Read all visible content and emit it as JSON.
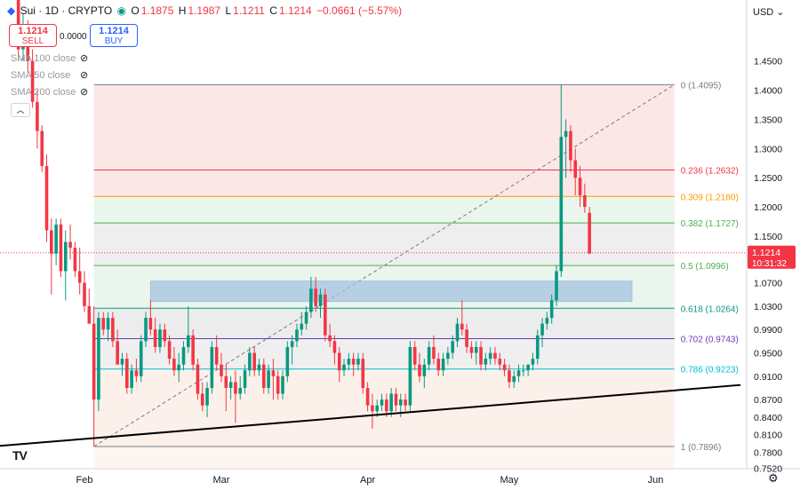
{
  "header": {
    "symbol": "Sui · 1D · CRYPTO",
    "open_label": "O",
    "open": "1.1875",
    "high_label": "H",
    "high": "1.1987",
    "low_label": "L",
    "low": "1.1211",
    "close_label": "C",
    "close": "1.1214",
    "change": "−0.0661 (−5.57%)"
  },
  "trade": {
    "sell_price": "1.1214",
    "sell_label": "SELL",
    "buy_price": "1.1214",
    "buy_label": "BUY",
    "spread": "0.0000"
  },
  "indicators": [
    "SMA 100 close",
    "SMA 50 close",
    "SMA 200 close"
  ],
  "currency_button": "USD",
  "last_price_label": "1.1214",
  "countdown_label": "10:31:32",
  "colors": {
    "up": "#089981",
    "down": "#f23645",
    "zone": "#a6c3e2",
    "trendline": "#000000"
  },
  "chart_data": {
    "type": "candlestick",
    "y_ticks": [
      1.45,
      1.4,
      1.35,
      1.3,
      1.25,
      1.2,
      1.15,
      1.07,
      1.03,
      0.99,
      0.95,
      0.91,
      0.87,
      0.84,
      0.81,
      0.78,
      0.752
    ],
    "y_tick_labels": [
      "1.4500",
      "1.4000",
      "1.3500",
      "1.3000",
      "1.2500",
      "1.2000",
      "1.1500",
      "1.0700",
      "1.0300",
      "0.9900",
      "0.9500",
      "0.9100",
      "0.8700",
      "0.8400",
      "0.8100",
      "0.7800",
      "0.7520"
    ],
    "x_labels": [
      {
        "label": "Feb",
        "day": 31
      },
      {
        "label": "Mar",
        "day": 60
      },
      {
        "label": "Apr",
        "day": 91
      },
      {
        "label": "May",
        "day": 121
      },
      {
        "label": "Jun",
        "day": 152
      }
    ],
    "fibonacci": {
      "high": 1.4095,
      "low": 0.7896,
      "start_day": 33,
      "end_day": 156,
      "levels": [
        {
          "label": "0 (1.4095)",
          "value": 1.4095,
          "color": "#787b86",
          "fill": "#fbe3e3"
        },
        {
          "label": "0.236 (1.2632)",
          "value": 1.2632,
          "color": "#f23645",
          "fill": "#fbe3e3"
        },
        {
          "label": "0.309 (1.2180)",
          "value": 1.218,
          "color": "#ff9800",
          "fill": "#e6f4ea"
        },
        {
          "label": "0.382 (1.1727)",
          "value": 1.1727,
          "color": "#4caf50",
          "fill": "#ebebeb"
        },
        {
          "label": "0.5 (1.0996)",
          "value": 1.0996,
          "color": "#4caf50",
          "fill": "#e6f4ea"
        },
        {
          "label": "0.618 (1.0264)",
          "value": 1.0264,
          "color": "#089981",
          "fill": "#e9e9e9"
        },
        {
          "label": "0.702 (0.9743)",
          "value": 0.9743,
          "color": "#673ab7",
          "fill": "#ececec"
        },
        {
          "label": "0.786 (0.9223)",
          "value": 0.9223,
          "color": "#00bcd4",
          "fill": "#fbeee6"
        },
        {
          "label": "1 (0.7896)",
          "value": 0.7896,
          "color": "#787b86",
          "fill": null
        }
      ]
    },
    "zone": {
      "day_start": 45,
      "day_end": 147,
      "top": 1.073,
      "bottom": 1.038
    },
    "trendline": {
      "day1": 0,
      "price1": 0.782,
      "day2": 170,
      "price2": 0.895
    },
    "last_price": 1.1214,
    "candles": [
      [
        17,
        1.6,
        1.62,
        1.45,
        1.47
      ],
      [
        18,
        1.47,
        1.53,
        1.45,
        1.5
      ],
      [
        19,
        1.5,
        1.52,
        1.43,
        1.45
      ],
      [
        20,
        1.45,
        1.47,
        1.37,
        1.38
      ],
      [
        21,
        1.38,
        1.4,
        1.3,
        1.33
      ],
      [
        22,
        1.33,
        1.34,
        1.26,
        1.27
      ],
      [
        23,
        1.27,
        1.29,
        1.14,
        1.16
      ],
      [
        24,
        1.16,
        1.18,
        1.05,
        1.12
      ],
      [
        25,
        1.12,
        1.18,
        1.1,
        1.17
      ],
      [
        26,
        1.17,
        1.18,
        1.08,
        1.09
      ],
      [
        27,
        1.09,
        1.16,
        1.04,
        1.14
      ],
      [
        28,
        1.14,
        1.17,
        1.11,
        1.13
      ],
      [
        29,
        1.13,
        1.14,
        1.08,
        1.09
      ],
      [
        30,
        1.09,
        1.13,
        1.05,
        1.07
      ],
      [
        31,
        1.07,
        1.09,
        1.02,
        1.03
      ],
      [
        32,
        1.03,
        1.06,
        1.0,
        1.0
      ],
      [
        33,
        1.0,
        1.03,
        0.79,
        0.87
      ],
      [
        34,
        0.87,
        1.02,
        0.85,
        1.01
      ],
      [
        35,
        1.01,
        1.02,
        0.98,
        0.99
      ],
      [
        36,
        0.99,
        1.02,
        0.97,
        1.01
      ],
      [
        37,
        1.01,
        1.02,
        0.96,
        0.97
      ],
      [
        38,
        0.97,
        0.99,
        0.93,
        0.93
      ],
      [
        39,
        0.93,
        0.95,
        0.91,
        0.94
      ],
      [
        40,
        0.94,
        0.95,
        0.88,
        0.89
      ],
      [
        41,
        0.89,
        0.93,
        0.88,
        0.92
      ],
      [
        42,
        0.92,
        0.94,
        0.9,
        0.91
      ],
      [
        43,
        0.91,
        0.98,
        0.9,
        0.97
      ],
      [
        44,
        0.97,
        1.02,
        0.96,
        1.01
      ],
      [
        45,
        1.01,
        1.04,
        0.98,
        0.99
      ],
      [
        46,
        0.99,
        1.01,
        0.95,
        0.96
      ],
      [
        47,
        0.96,
        1.0,
        0.95,
        0.99
      ],
      [
        48,
        0.99,
        1.0,
        0.96,
        0.97
      ],
      [
        49,
        0.97,
        0.98,
        0.93,
        0.94
      ],
      [
        50,
        0.94,
        0.96,
        0.91,
        0.92
      ],
      [
        51,
        0.92,
        0.95,
        0.9,
        0.93
      ],
      [
        52,
        0.93,
        0.97,
        0.92,
        0.96
      ],
      [
        53,
        0.96,
        1.03,
        0.95,
        0.98
      ],
      [
        54,
        0.98,
        0.99,
        0.92,
        0.93
      ],
      [
        55,
        0.93,
        0.94,
        0.87,
        0.88
      ],
      [
        56,
        0.88,
        0.9,
        0.85,
        0.86
      ],
      [
        57,
        0.86,
        0.9,
        0.84,
        0.89
      ],
      [
        58,
        0.89,
        0.97,
        0.88,
        0.96
      ],
      [
        59,
        0.96,
        0.98,
        0.92,
        0.93
      ],
      [
        60,
        0.93,
        0.95,
        0.9,
        0.91
      ],
      [
        61,
        0.91,
        0.93,
        0.85,
        0.89
      ],
      [
        62,
        0.89,
        0.91,
        0.87,
        0.9
      ],
      [
        63,
        0.9,
        0.92,
        0.83,
        0.88
      ],
      [
        64,
        0.88,
        0.91,
        0.87,
        0.89
      ],
      [
        65,
        0.89,
        0.93,
        0.88,
        0.92
      ],
      [
        66,
        0.92,
        0.96,
        0.91,
        0.95
      ],
      [
        67,
        0.95,
        0.96,
        0.91,
        0.92
      ],
      [
        68,
        0.92,
        0.94,
        0.91,
        0.93
      ],
      [
        69,
        0.93,
        0.94,
        0.88,
        0.89
      ],
      [
        70,
        0.89,
        0.93,
        0.88,
        0.92
      ],
      [
        71,
        0.92,
        0.94,
        0.87,
        0.91
      ],
      [
        72,
        0.91,
        0.92,
        0.87,
        0.88
      ],
      [
        73,
        0.88,
        0.92,
        0.87,
        0.91
      ],
      [
        74,
        0.91,
        0.97,
        0.9,
        0.96
      ],
      [
        75,
        0.96,
        0.98,
        0.93,
        0.97
      ],
      [
        76,
        0.97,
        1.0,
        0.96,
        0.99
      ],
      [
        77,
        0.99,
        1.02,
        0.98,
        1.0
      ],
      [
        78,
        1.0,
        1.03,
        0.99,
        1.02
      ],
      [
        79,
        1.02,
        1.08,
        1.01,
        1.06
      ],
      [
        80,
        1.06,
        1.08,
        1.02,
        1.03
      ],
      [
        81,
        1.03,
        1.06,
        1.01,
        1.05
      ],
      [
        82,
        1.05,
        1.06,
        0.97,
        0.98
      ],
      [
        83,
        0.98,
        1.0,
        0.96,
        0.97
      ],
      [
        84,
        0.97,
        0.98,
        0.93,
        0.95
      ],
      [
        85,
        0.95,
        0.96,
        0.9,
        0.92
      ],
      [
        86,
        0.92,
        0.94,
        0.91,
        0.93
      ],
      [
        87,
        0.93,
        0.95,
        0.92,
        0.94
      ],
      [
        88,
        0.94,
        0.95,
        0.91,
        0.93
      ],
      [
        89,
        0.93,
        0.95,
        0.92,
        0.94
      ],
      [
        90,
        0.94,
        0.95,
        0.88,
        0.89
      ],
      [
        91,
        0.89,
        0.9,
        0.85,
        0.86
      ],
      [
        92,
        0.86,
        0.88,
        0.82,
        0.85
      ],
      [
        93,
        0.85,
        0.87,
        0.84,
        0.86
      ],
      [
        94,
        0.86,
        0.88,
        0.85,
        0.87
      ],
      [
        95,
        0.87,
        0.88,
        0.84,
        0.85
      ],
      [
        96,
        0.85,
        0.89,
        0.84,
        0.88
      ],
      [
        97,
        0.88,
        0.89,
        0.85,
        0.86
      ],
      [
        98,
        0.86,
        0.88,
        0.84,
        0.87
      ],
      [
        99,
        0.87,
        0.88,
        0.85,
        0.86
      ],
      [
        100,
        0.86,
        0.97,
        0.85,
        0.96
      ],
      [
        101,
        0.96,
        0.97,
        0.92,
        0.93
      ],
      [
        102,
        0.93,
        0.95,
        0.9,
        0.91
      ],
      [
        103,
        0.91,
        0.94,
        0.89,
        0.93
      ],
      [
        104,
        0.93,
        0.97,
        0.92,
        0.96
      ],
      [
        105,
        0.96,
        0.98,
        0.93,
        0.94
      ],
      [
        106,
        0.94,
        0.95,
        0.91,
        0.92
      ],
      [
        107,
        0.92,
        0.95,
        0.91,
        0.94
      ],
      [
        108,
        0.94,
        0.96,
        0.93,
        0.95
      ],
      [
        109,
        0.95,
        0.98,
        0.94,
        0.97
      ],
      [
        110,
        0.97,
        1.01,
        0.96,
        1.0
      ],
      [
        111,
        1.0,
        1.04,
        0.98,
        0.99
      ],
      [
        112,
        0.99,
        1.0,
        0.95,
        0.96
      ],
      [
        113,
        0.96,
        0.97,
        0.94,
        0.95
      ],
      [
        114,
        0.95,
        0.97,
        0.93,
        0.96
      ],
      [
        115,
        0.96,
        0.97,
        0.92,
        0.93
      ],
      [
        116,
        0.93,
        0.95,
        0.92,
        0.94
      ],
      [
        117,
        0.94,
        0.96,
        0.93,
        0.95
      ],
      [
        118,
        0.95,
        0.96,
        0.93,
        0.94
      ],
      [
        119,
        0.94,
        0.95,
        0.92,
        0.93
      ],
      [
        120,
        0.93,
        0.94,
        0.91,
        0.92
      ],
      [
        121,
        0.92,
        0.93,
        0.89,
        0.9
      ],
      [
        122,
        0.9,
        0.92,
        0.89,
        0.91
      ],
      [
        123,
        0.91,
        0.93,
        0.9,
        0.92
      ],
      [
        124,
        0.92,
        0.93,
        0.91,
        0.92
      ],
      [
        125,
        0.92,
        0.93,
        0.91,
        0.93
      ],
      [
        126,
        0.93,
        0.95,
        0.92,
        0.94
      ],
      [
        127,
        0.94,
        0.99,
        0.93,
        0.98
      ],
      [
        128,
        0.98,
        1.01,
        0.96,
        1.0
      ],
      [
        129,
        1.0,
        1.02,
        0.99,
        1.01
      ],
      [
        130,
        1.01,
        1.05,
        1.0,
        1.04
      ],
      [
        131,
        1.04,
        1.1,
        1.03,
        1.09
      ],
      [
        132,
        1.09,
        1.41,
        1.08,
        1.32
      ],
      [
        133,
        1.32,
        1.35,
        1.25,
        1.33
      ],
      [
        134,
        1.33,
        1.34,
        1.26,
        1.28
      ],
      [
        135,
        1.28,
        1.3,
        1.22,
        1.25
      ],
      [
        136,
        1.25,
        1.27,
        1.2,
        1.22
      ],
      [
        137,
        1.22,
        1.24,
        1.19,
        1.2
      ],
      [
        138,
        1.19,
        1.2,
        1.12,
        1.12
      ]
    ]
  }
}
